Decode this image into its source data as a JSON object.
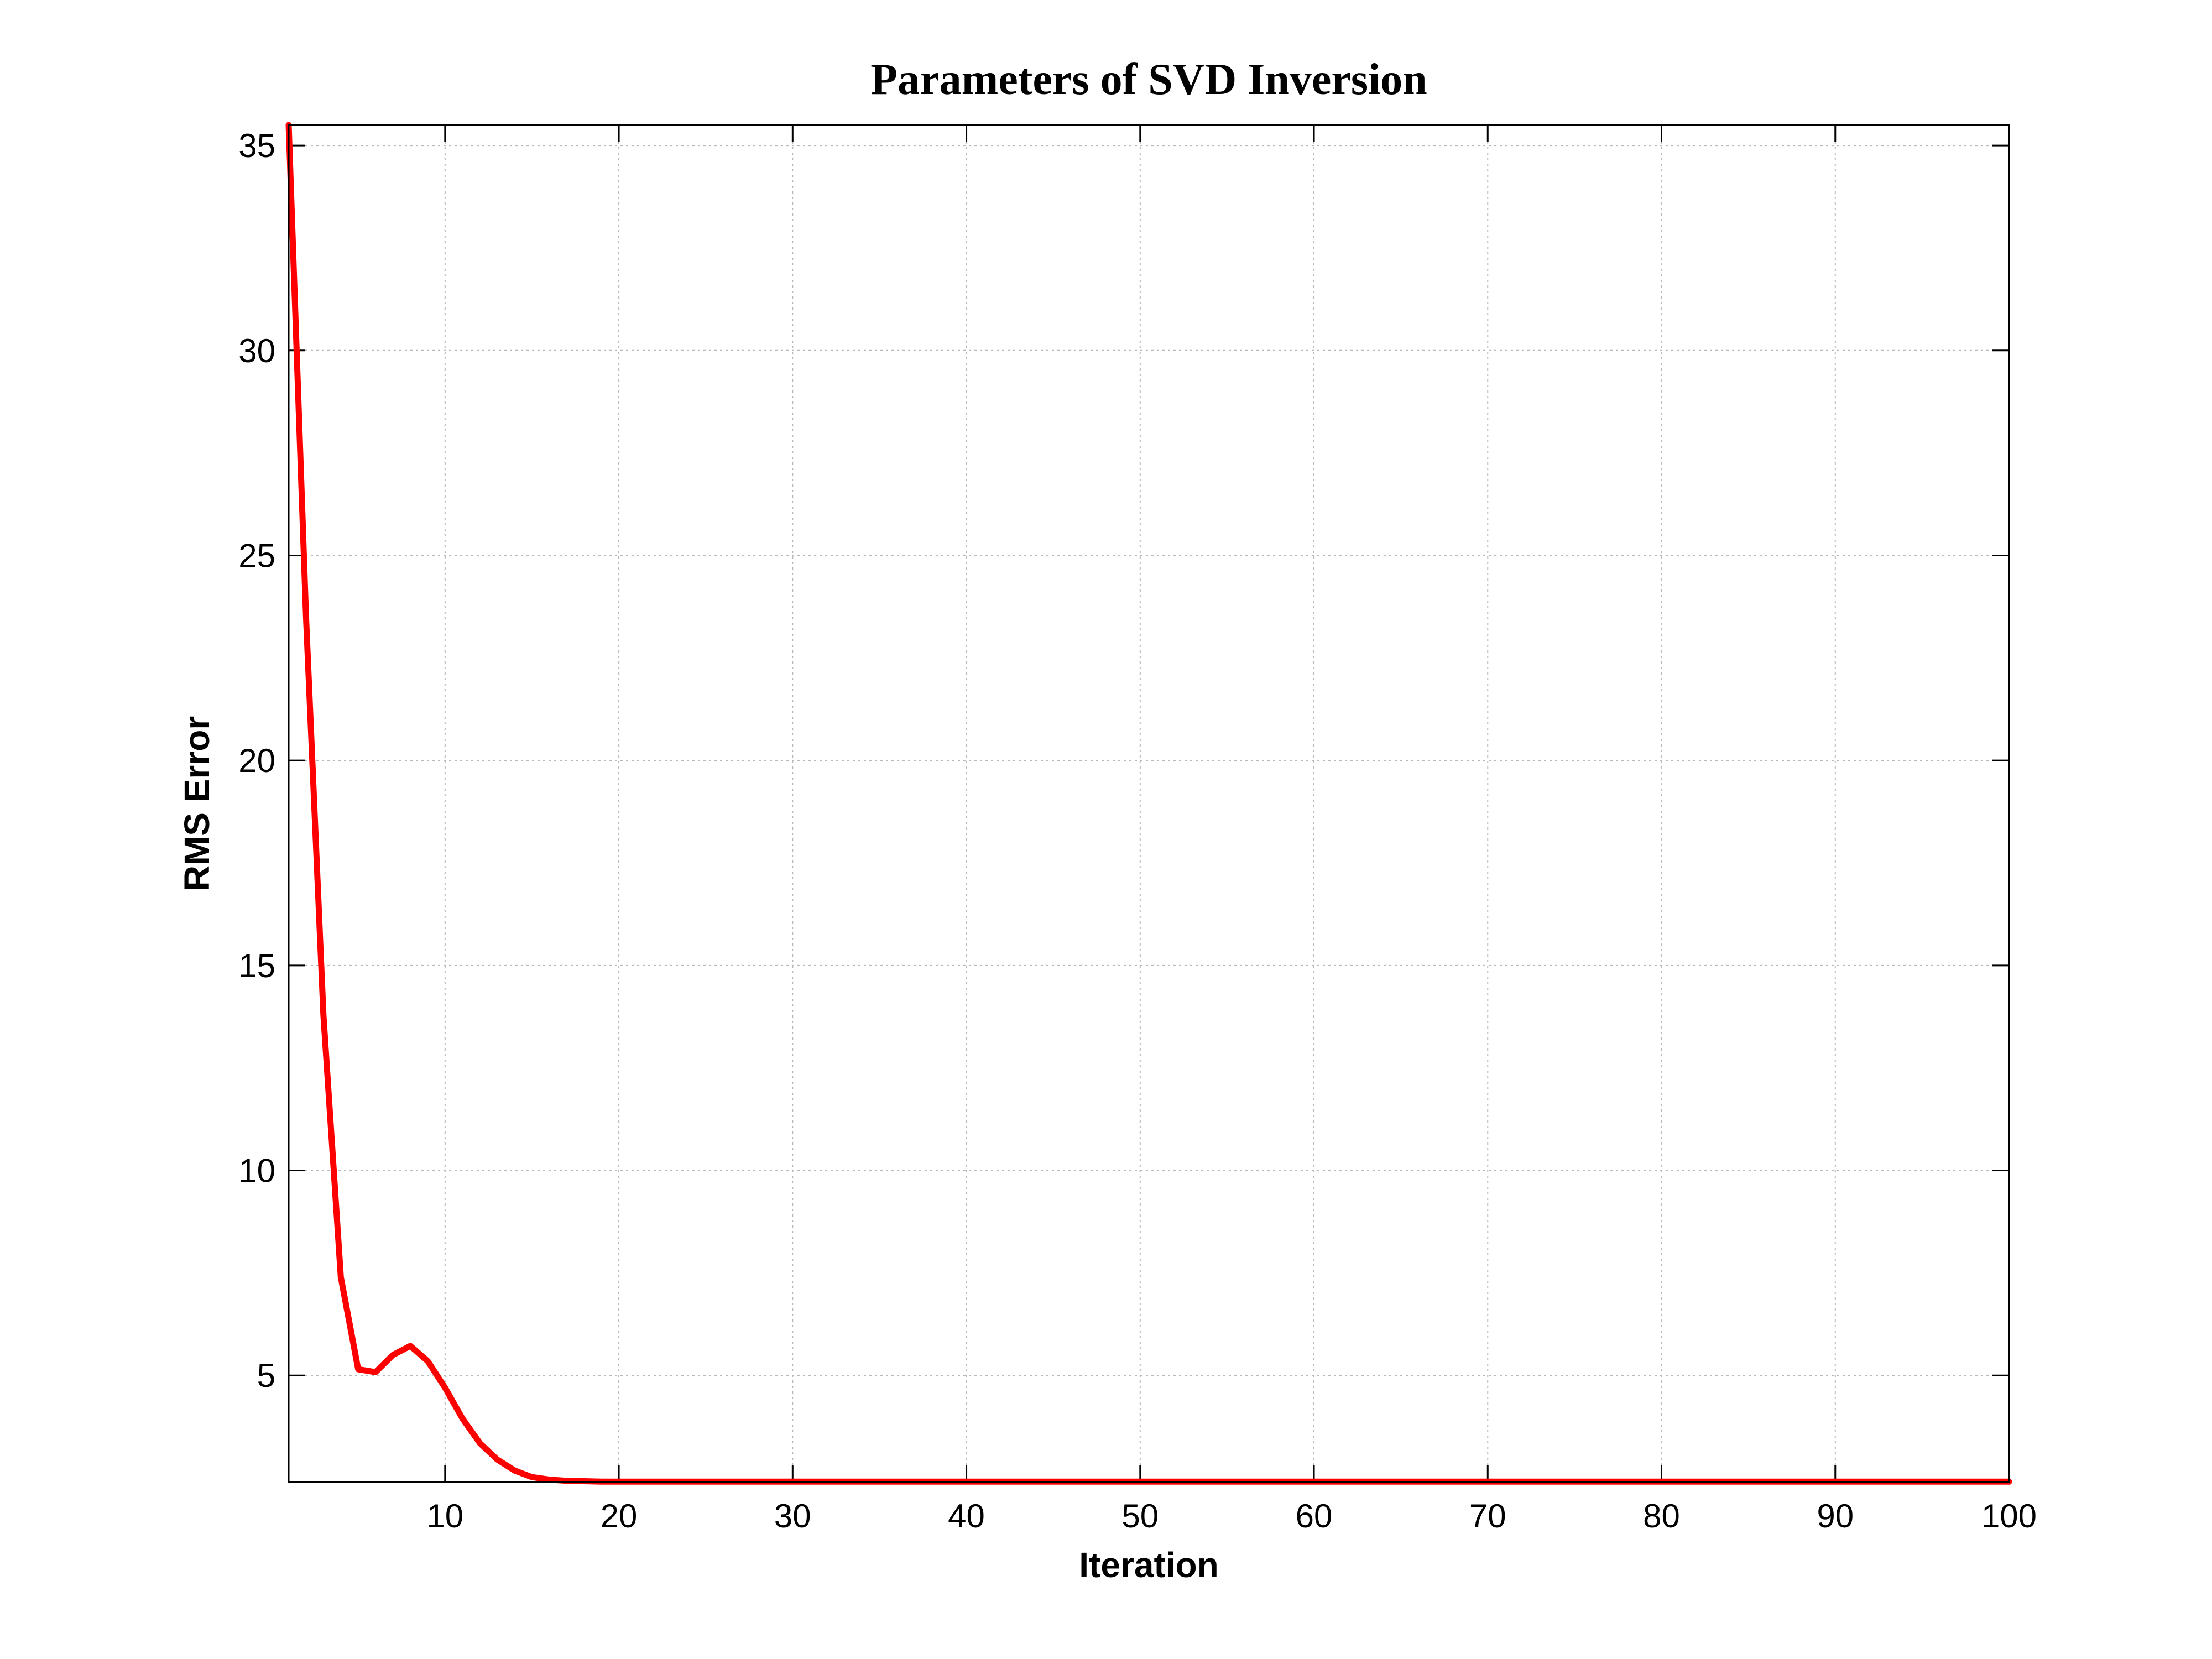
{
  "chart_data": {
    "type": "line",
    "title": "Parameters of SVD Inversion",
    "xlabel": "Iteration",
    "ylabel": "RMS Error",
    "xlim": [
      1,
      100
    ],
    "ylim": [
      2.4,
      35.5
    ],
    "xticks": [
      10,
      20,
      30,
      40,
      50,
      60,
      70,
      80,
      90,
      100
    ],
    "yticks": [
      5,
      10,
      15,
      20,
      25,
      30,
      35
    ],
    "grid": true,
    "legend": "none",
    "line_color": "#ff0000",
    "series": [
      {
        "x": [
          1,
          2,
          3,
          4,
          5,
          6,
          7,
          8,
          9,
          10,
          11,
          12,
          13,
          14,
          15,
          16,
          17,
          18,
          19,
          20,
          21,
          22,
          23,
          24,
          25,
          26,
          27,
          28,
          29,
          30,
          31,
          32,
          33,
          34,
          35,
          36,
          37,
          38,
          39,
          40,
          41,
          42,
          43,
          44,
          45,
          46,
          47,
          48,
          49,
          50,
          51,
          52,
          53,
          54,
          55,
          56,
          57,
          58,
          59,
          60,
          61,
          62,
          63,
          64,
          65,
          66,
          67,
          68,
          69,
          70,
          71,
          72,
          73,
          74,
          75,
          76,
          77,
          78,
          79,
          80,
          81,
          82,
          83,
          84,
          85,
          86,
          87,
          88,
          89,
          90,
          91,
          92,
          93,
          94,
          95,
          96,
          97,
          98,
          99,
          100
        ],
        "values": [
          35.5,
          23.5,
          13.8,
          7.4,
          5.15,
          5.08,
          5.5,
          5.72,
          5.35,
          4.7,
          3.95,
          3.35,
          2.95,
          2.68,
          2.52,
          2.46,
          2.43,
          2.42,
          2.41,
          2.41,
          2.41,
          2.41,
          2.41,
          2.41,
          2.41,
          2.41,
          2.41,
          2.41,
          2.41,
          2.41,
          2.41,
          2.41,
          2.41,
          2.41,
          2.41,
          2.41,
          2.41,
          2.41,
          2.41,
          2.41,
          2.41,
          2.41,
          2.41,
          2.41,
          2.41,
          2.41,
          2.41,
          2.41,
          2.41,
          2.41,
          2.41,
          2.41,
          2.41,
          2.41,
          2.41,
          2.41,
          2.41,
          2.41,
          2.41,
          2.41,
          2.41,
          2.41,
          2.41,
          2.41,
          2.41,
          2.41,
          2.41,
          2.41,
          2.41,
          2.41,
          2.41,
          2.41,
          2.41,
          2.41,
          2.41,
          2.41,
          2.41,
          2.41,
          2.41,
          2.41,
          2.41,
          2.41,
          2.41,
          2.41,
          2.41,
          2.41,
          2.41,
          2.41,
          2.41,
          2.41,
          2.41,
          2.41,
          2.41,
          2.41,
          2.41,
          2.41,
          2.41,
          2.41,
          2.41,
          2.41
        ]
      }
    ]
  }
}
